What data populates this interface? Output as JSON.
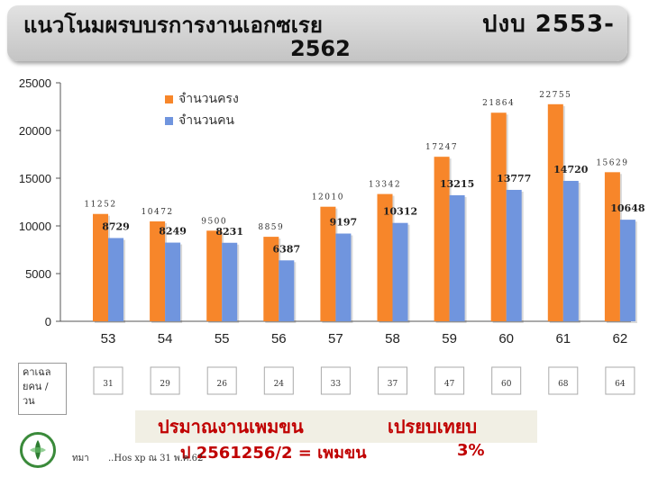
{
  "header": {
    "title": "แนวโนมผรบบรการงานเอกซเรย",
    "budget_label": "ปงบ  2553-",
    "year_end": "2562"
  },
  "legend": {
    "item1": "จำนวนครง",
    "item2": "จำนวนคน"
  },
  "colors": {
    "orange": "#f7862a",
    "blue": "#7095de"
  },
  "chart_data": {
    "type": "bar",
    "categories": [
      "53",
      "54",
      "55",
      "56",
      "57",
      "58",
      "59",
      "60",
      "61",
      "62"
    ],
    "ylim": [
      0,
      25000
    ],
    "yticks": [
      0,
      5000,
      10000,
      15000,
      20000,
      25000
    ],
    "grid": false,
    "legend_position": "top-left",
    "series": [
      {
        "name": "จำนวนครง",
        "color": "#f7862a",
        "values": [
          11252,
          10472,
          9500,
          8859,
          12010,
          13342,
          17247,
          21864,
          22755,
          15629
        ],
        "labels": [
          "11252",
          "10472",
          "9500",
          "8859",
          "12010",
          "13342",
          "17247",
          "21864",
          "22755",
          "15629"
        ]
      },
      {
        "name": "จำนวนคน",
        "color": "#7095de",
        "values": [
          8729,
          8249,
          8231,
          6387,
          9197,
          10312,
          13215,
          13777,
          14720,
          10648
        ],
        "labels": [
          "8729",
          "8249",
          "8231",
          "6387",
          "9197",
          "10312",
          "13215",
          "13777",
          "14720",
          "10648"
        ]
      }
    ],
    "period_label": "คาเฉล ยคน / วน",
    "period_values": [
      "31",
      "29",
      "26",
      "24",
      "33",
      "37",
      "47",
      "60",
      "68",
      "64"
    ]
  },
  "footer": {
    "line1_a": "ปรมาณงานเพมขน",
    "line1_b": "เปรยบเทยบ",
    "line2_a": "ป 2561256/2 = เพมขน",
    "line2_b": "3%",
    "source_a": "ทมา",
    "source_b": "..Hos xp ณ 31 พ.ค.62"
  }
}
